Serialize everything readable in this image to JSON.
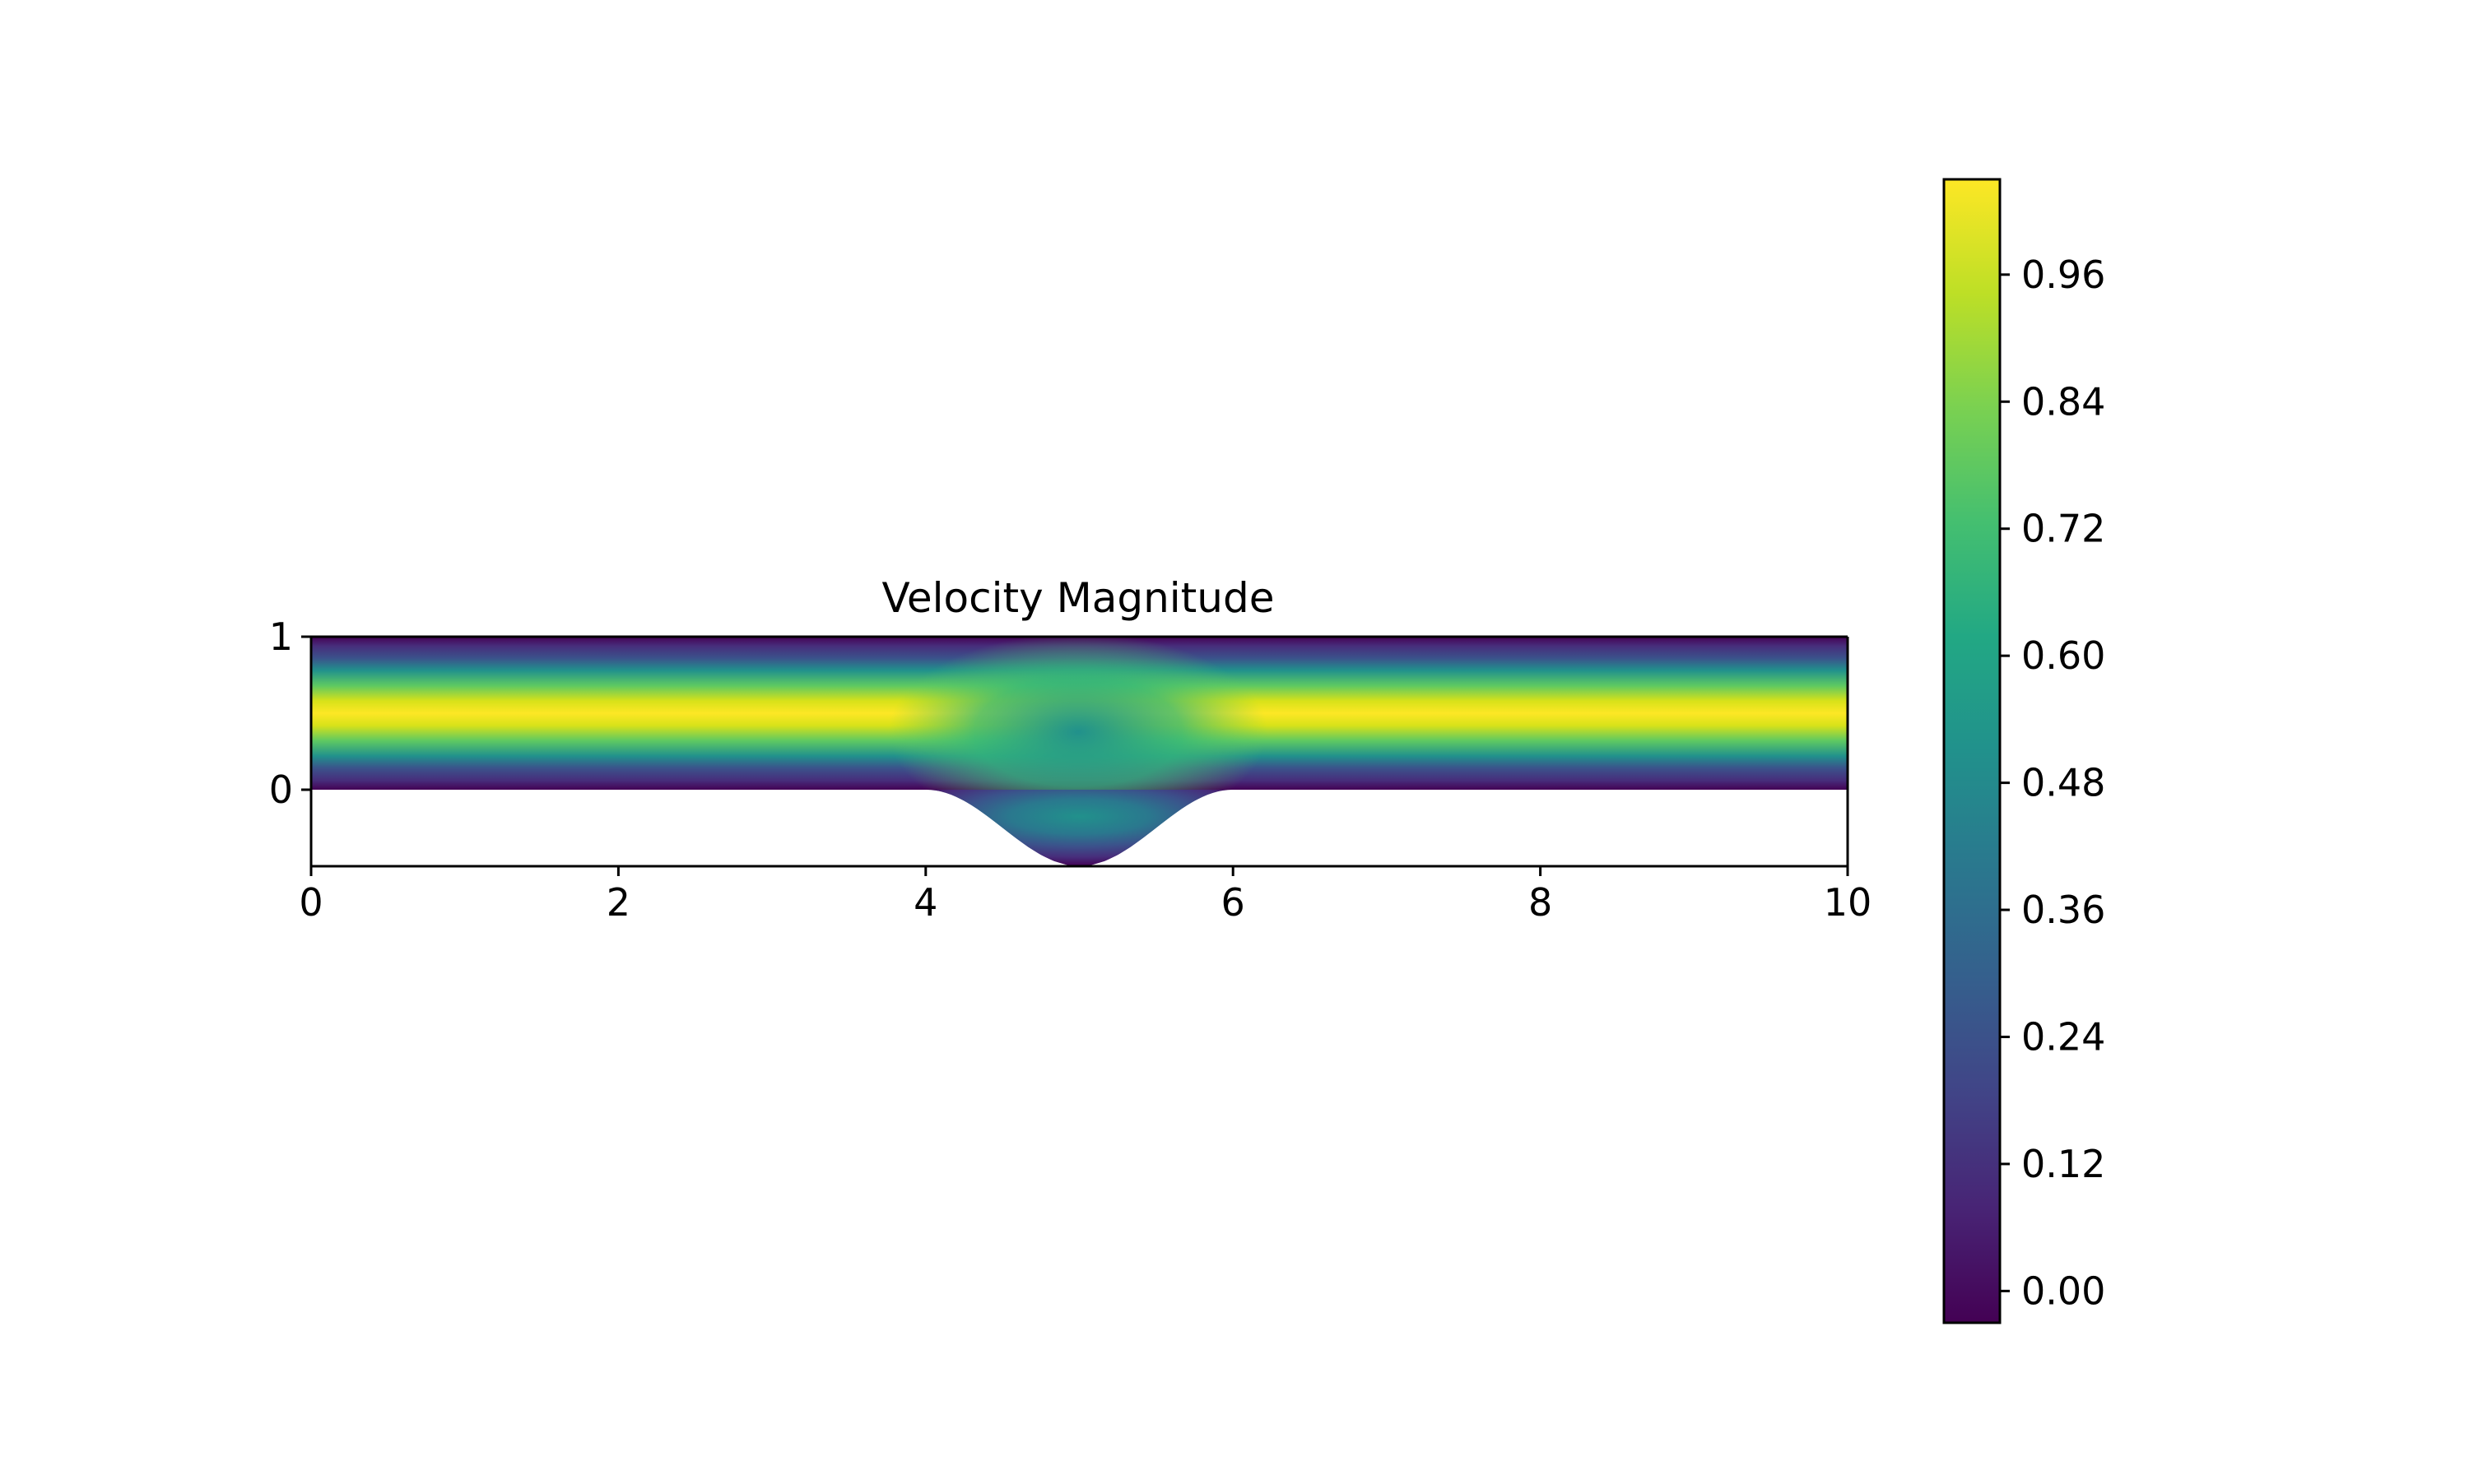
{
  "chart_data": {
    "type": "contourf",
    "title": "Velocity Magnitude",
    "xlabel": "",
    "ylabel": "",
    "xlim": [
      0,
      10
    ],
    "ylim": [
      -0.5,
      1
    ],
    "x_ticks": [
      "0",
      "2",
      "4",
      "6",
      "8",
      "10"
    ],
    "y_ticks": [
      "0",
      "1"
    ],
    "grid": false,
    "colormap": "viridis",
    "colorbar": {
      "ticks": [
        "0.00",
        "0.12",
        "0.24",
        "0.36",
        "0.48",
        "0.60",
        "0.72",
        "0.84",
        "0.96"
      ],
      "range": [
        -0.03,
        1.05
      ]
    },
    "domain": {
      "channel_y": [
        0,
        1
      ],
      "bump_x_range": [
        4,
        6
      ],
      "bump_min_y": -0.5
    }
  }
}
